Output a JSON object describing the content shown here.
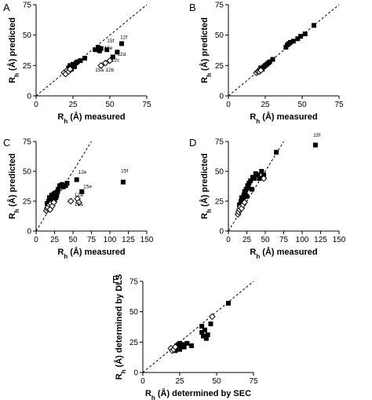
{
  "chart_data": [
    {
      "panel": "A",
      "type": "scatter",
      "xlabel_main": "R",
      "xlabel_sub": "h",
      "xlabel_rest": " (Å) measured",
      "ylabel_main": "R",
      "ylabel_sub": "h",
      "ylabel_rest": " (Å) predicted",
      "xlim": [
        0,
        75
      ],
      "ylim": [
        0,
        75
      ],
      "xticks": [
        "0",
        "25",
        "50",
        "75"
      ],
      "yticks": [
        "0",
        "25",
        "50",
        "75"
      ],
      "identity_line": true,
      "series": [
        {
          "marker": "square-filled",
          "x": [
            22,
            23,
            24,
            25,
            26,
            27,
            28,
            30,
            33,
            40,
            42,
            43,
            44,
            48,
            52,
            55,
            58
          ],
          "y": [
            23,
            25,
            22,
            26,
            24,
            27,
            28,
            29,
            31,
            38,
            40,
            37,
            39,
            38,
            32,
            36,
            43
          ]
        },
        {
          "marker": "diamond-open",
          "x": [
            19,
            20,
            21,
            22,
            23,
            44,
            47,
            50
          ],
          "y": [
            19,
            18,
            21,
            20,
            22,
            25,
            27,
            29
          ]
        }
      ],
      "annotations": [
        {
          "text": "15f",
          "x": 48,
          "y": 44
        },
        {
          "text": "12f",
          "x": 57,
          "y": 47
        },
        {
          "text": "12e",
          "x": 46,
          "y": 38
        },
        {
          "text": "12d",
          "x": 55,
          "y": 33
        },
        {
          "text": "12c",
          "x": 51,
          "y": 28
        },
        {
          "text": "15a",
          "x": 40,
          "y": 20
        },
        {
          "text": "12b",
          "x": 47,
          "y": 20
        }
      ]
    },
    {
      "panel": "B",
      "type": "scatter",
      "xlabel_main": "R",
      "xlabel_sub": "h",
      "xlabel_rest": " (Å) measured",
      "ylabel_main": "R",
      "ylabel_sub": "h",
      "ylabel_rest": " (Å) predicted",
      "xlim": [
        0,
        75
      ],
      "ylim": [
        0,
        75
      ],
      "xticks": [
        "0",
        "25",
        "50",
        "75"
      ],
      "yticks": [
        "0",
        "25",
        "50",
        "75"
      ],
      "identity_line": true,
      "series": [
        {
          "marker": "square-filled",
          "x": [
            21,
            22,
            23,
            24,
            25,
            26,
            27,
            28,
            30,
            39,
            40,
            41,
            42,
            44,
            47,
            49,
            52,
            58
          ],
          "y": [
            21,
            23,
            22,
            24,
            25,
            26,
            27,
            28,
            30,
            40,
            42,
            43,
            44,
            45,
            47,
            49,
            51,
            58
          ]
        },
        {
          "marker": "diamond-open",
          "x": [
            19,
            20,
            21,
            22
          ],
          "y": [
            19,
            20,
            20,
            21
          ]
        }
      ],
      "annotations": []
    },
    {
      "panel": "C",
      "type": "scatter",
      "xlabel_main": "R",
      "xlabel_sub": "h",
      "xlabel_rest": " (Å) measured",
      "ylabel_main": "R",
      "ylabel_sub": "h",
      "ylabel_rest": " (Å) predicted",
      "xlim": [
        0,
        150
      ],
      "ylim": [
        0,
        75
      ],
      "xticks": [
        "0",
        "25",
        "50",
        "75",
        "100",
        "125",
        "150"
      ],
      "yticks": [
        "0",
        "25",
        "50",
        "75"
      ],
      "identity_line": true,
      "series": [
        {
          "marker": "square-filled",
          "x": [
            15,
            17,
            18,
            20,
            21,
            22,
            23,
            24,
            25,
            26,
            27,
            28,
            29,
            30,
            32,
            35,
            37,
            40,
            42,
            55,
            62,
            118
          ],
          "y": [
            23,
            25,
            28,
            27,
            30,
            24,
            29,
            31,
            26,
            32,
            28,
            30,
            33,
            35,
            38,
            39,
            37,
            38,
            40,
            43,
            33,
            41
          ]
        },
        {
          "marker": "diamond-open",
          "x": [
            14,
            15,
            16,
            18,
            19,
            20,
            22,
            24,
            47,
            56,
            58
          ],
          "y": [
            17,
            19,
            20,
            22,
            18,
            23,
            21,
            24,
            25,
            27,
            24
          ]
        }
      ],
      "annotations": [
        {
          "text": "12e",
          "x": 57,
          "y": 48
        },
        {
          "text": "15e",
          "x": 64,
          "y": 36
        },
        {
          "text": "12a",
          "x": 52,
          "y": 29
        },
        {
          "text": "15a",
          "x": 52,
          "y": 21
        },
        {
          "text": "15f",
          "x": 115,
          "y": 49
        }
      ]
    },
    {
      "panel": "D",
      "type": "scatter",
      "xlabel_main": "R",
      "xlabel_sub": "h",
      "xlabel_rest": " (Å) measured",
      "ylabel_main": "R",
      "ylabel_sub": "h",
      "ylabel_rest": " (Å) predicted",
      "xlim": [
        0,
        150
      ],
      "ylim": [
        0,
        75
      ],
      "xticks": [
        "0",
        "25",
        "50",
        "75",
        "100",
        "125",
        "150"
      ],
      "yticks": [
        "0",
        "25",
        "50",
        "75"
      ],
      "identity_line": true,
      "series": [
        {
          "marker": "square-filled",
          "x": [
            15,
            17,
            18,
            20,
            21,
            22,
            23,
            24,
            25,
            26,
            27,
            28,
            30,
            32,
            33,
            35,
            37,
            40,
            42,
            45,
            48,
            65,
            118
          ],
          "y": [
            22,
            25,
            28,
            27,
            30,
            33,
            32,
            35,
            29,
            38,
            36,
            40,
            42,
            35,
            45,
            44,
            48,
            47,
            44,
            50,
            47,
            66,
            72
          ]
        },
        {
          "marker": "diamond-open",
          "x": [
            13,
            14,
            15,
            16,
            18,
            20,
            22,
            48
          ],
          "y": [
            14,
            16,
            18,
            20,
            19,
            22,
            24,
            44
          ]
        }
      ],
      "annotations": [
        {
          "text": "15f",
          "x": 115,
          "y": 79
        }
      ]
    },
    {
      "panel": "E",
      "type": "scatter",
      "xlabel_main": "R",
      "xlabel_sub": "h",
      "xlabel_rest": " (Å) determined by SEC",
      "ylabel_main": "R",
      "ylabel_sub": "h",
      "ylabel_rest": " (Å) determined by DLS",
      "xlim": [
        0,
        75
      ],
      "ylim": [
        0,
        75
      ],
      "xticks": [
        "0",
        "25",
        "50",
        "75"
      ],
      "yticks": [
        "0",
        "25",
        "50",
        "75"
      ],
      "identity_line": true,
      "series": [
        {
          "marker": "square-filled",
          "x": [
            22,
            23,
            23,
            24,
            24,
            25,
            25,
            26,
            27,
            28,
            30,
            33,
            40,
            40,
            41,
            42,
            43,
            44,
            46,
            58
          ],
          "y": [
            18,
            22,
            20,
            21,
            23,
            19,
            24,
            22,
            23,
            21,
            24,
            22,
            38,
            33,
            30,
            35,
            28,
            31,
            40,
            57
          ]
        },
        {
          "marker": "diamond-open",
          "x": [
            19,
            20,
            21,
            22,
            47
          ],
          "y": [
            20,
            18,
            19,
            21,
            46
          ]
        }
      ],
      "annotations": []
    }
  ],
  "panel_letters": [
    "A",
    "B",
    "C",
    "D",
    "E"
  ],
  "colors": {
    "filled": "#000000",
    "open_stroke": "#000000",
    "axis": "#000000"
  }
}
